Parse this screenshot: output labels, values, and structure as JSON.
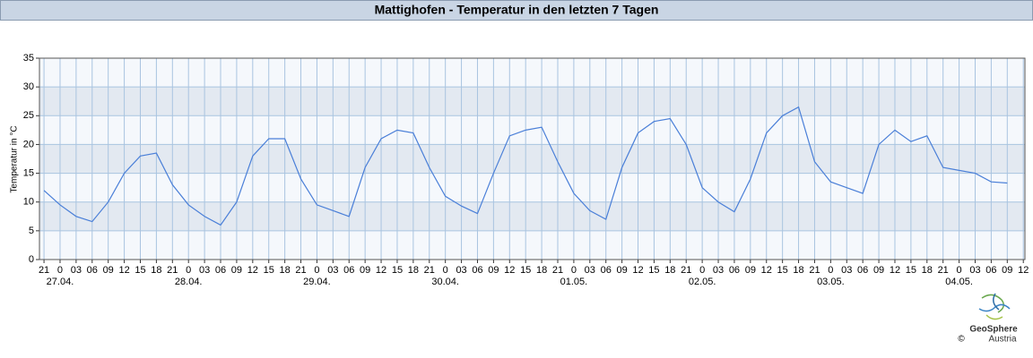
{
  "chart_data": {
    "type": "line",
    "title": "Mattighofen - Temperatur in den letzten 7 Tagen",
    "ylabel": "Temperatur in °C",
    "x": [
      -3,
      0,
      3,
      6,
      9,
      12,
      15,
      18,
      21,
      24,
      27,
      30,
      33,
      36,
      39,
      42,
      45,
      48,
      51,
      54,
      57,
      60,
      63,
      66,
      69,
      72,
      75,
      78,
      81,
      84,
      87,
      90,
      93,
      96,
      99,
      102,
      105,
      108,
      111,
      114,
      117,
      120,
      123,
      126,
      129,
      132,
      135,
      138,
      141,
      144,
      147,
      150,
      153,
      156,
      159,
      162,
      165,
      168,
      171,
      174,
      177
    ],
    "series": [
      {
        "name": "Temperatur",
        "color": "#4a7fd8",
        "values": [
          12,
          9.5,
          7.5,
          6.6,
          10,
          15,
          18,
          18.5,
          13,
          9.5,
          7.5,
          6,
          10,
          18,
          21,
          21,
          14,
          9.5,
          8.5,
          7.5,
          16,
          21,
          22.5,
          22,
          16,
          11,
          9.3,
          8,
          15,
          21.5,
          22.5,
          23,
          17,
          11.5,
          8.5,
          7,
          16,
          22,
          24,
          24.5,
          20,
          12.5,
          10,
          8.3,
          14,
          22,
          25,
          26.5,
          17,
          13.5,
          12.5,
          11.5,
          20,
          22.5,
          20.5,
          21.5,
          16,
          15.5,
          15,
          13.5,
          13.3
        ]
      }
    ],
    "xlim": [
      -3.85,
      180.3
    ],
    "xticks": [
      {
        "value": -3,
        "label": "21"
      },
      0,
      {
        "value": 3,
        "label": "03"
      },
      {
        "value": 6,
        "label": "06"
      },
      {
        "value": 9,
        "label": "09"
      },
      {
        "value": 12,
        "label": "12"
      },
      {
        "value": 15,
        "label": "15"
      },
      {
        "value": 18,
        "label": "18"
      },
      {
        "value": 21,
        "label": "21"
      },
      {
        "value": 24,
        "label": "0"
      },
      {
        "value": 27,
        "label": "03"
      },
      {
        "value": 30,
        "label": "06"
      },
      {
        "value": 33,
        "label": "09"
      },
      {
        "value": 36,
        "label": "12"
      },
      {
        "value": 39,
        "label": "15"
      },
      {
        "value": 42,
        "label": "18"
      },
      {
        "value": 45,
        "label": "21"
      },
      {
        "value": 48,
        "label": "0"
      },
      {
        "value": 51,
        "label": "03"
      },
      {
        "value": 54,
        "label": "06"
      },
      {
        "value": 57,
        "label": "09"
      },
      {
        "value": 60,
        "label": "12"
      },
      {
        "value": 63,
        "label": "15"
      },
      {
        "value": 66,
        "label": "18"
      },
      {
        "value": 69,
        "label": "21"
      },
      {
        "value": 72,
        "label": "0"
      },
      {
        "value": 75,
        "label": "03"
      },
      {
        "value": 78,
        "label": "06"
      },
      {
        "value": 81,
        "label": "09"
      },
      {
        "value": 84,
        "label": "12"
      },
      {
        "value": 87,
        "label": "15"
      },
      {
        "value": 90,
        "label": "18"
      },
      {
        "value": 93,
        "label": "21"
      },
      {
        "value": 96,
        "label": "0"
      },
      {
        "value": 99,
        "label": "03"
      },
      {
        "value": 102,
        "label": "06"
      },
      {
        "value": 105,
        "label": "09"
      },
      {
        "value": 108,
        "label": "12"
      },
      {
        "value": 111,
        "label": "15"
      },
      {
        "value": 114,
        "label": "18"
      },
      {
        "value": 117,
        "label": "21"
      },
      {
        "value": 120,
        "label": "0"
      },
      {
        "value": 123,
        "label": "03"
      },
      {
        "value": 126,
        "label": "06"
      },
      {
        "value": 129,
        "label": "09"
      },
      {
        "value": 132,
        "label": "12"
      },
      {
        "value": 135,
        "label": "15"
      },
      {
        "value": 138,
        "label": "18"
      },
      {
        "value": 141,
        "label": "21"
      },
      {
        "value": 144,
        "label": "0"
      },
      {
        "value": 147,
        "label": "03"
      },
      {
        "value": 150,
        "label": "06"
      },
      {
        "value": 153,
        "label": "09"
      },
      {
        "value": 156,
        "label": "12"
      },
      {
        "value": 159,
        "label": "15"
      },
      {
        "value": 162,
        "label": "18"
      },
      {
        "value": 165,
        "label": "21"
      },
      {
        "value": 168,
        "label": "0"
      },
      {
        "value": 171,
        "label": "03"
      },
      {
        "value": 174,
        "label": "06"
      },
      {
        "value": 177,
        "label": "09"
      },
      {
        "value": 180,
        "label": "12"
      }
    ],
    "date_ticks": [
      {
        "value": 0,
        "label": "27.04."
      },
      {
        "value": 24,
        "label": "28.04."
      },
      {
        "value": 48,
        "label": "29.04."
      },
      {
        "value": 72,
        "label": "30.04."
      },
      {
        "value": 96,
        "label": "01.05."
      },
      {
        "value": 120,
        "label": "02.05."
      },
      {
        "value": 144,
        "label": "03.05."
      },
      {
        "value": 168,
        "label": "04.05."
      }
    ],
    "ylim": [
      0,
      35
    ],
    "yticks": [
      0,
      5,
      10,
      15,
      20,
      25,
      30,
      35
    ],
    "grid": true,
    "logo": {
      "name": "GeoSphere",
      "sub": "Austria",
      "copyright": "©"
    }
  }
}
